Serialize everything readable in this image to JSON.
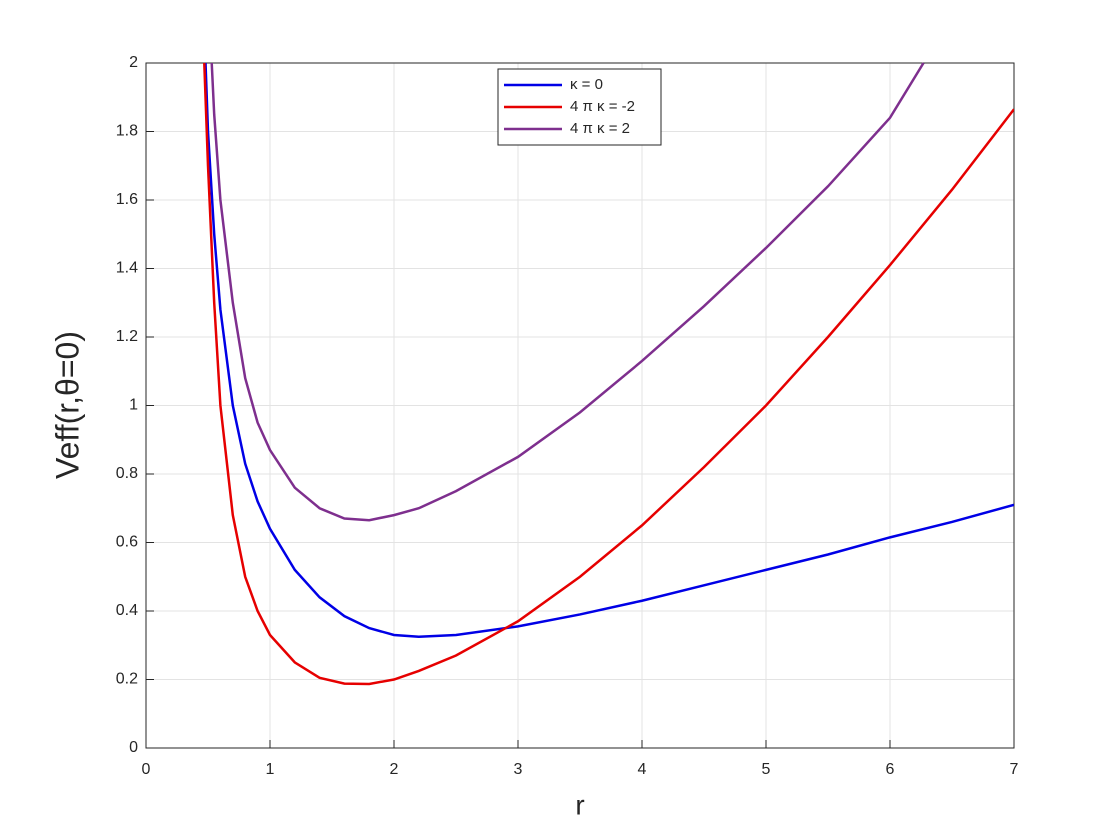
{
  "chart_data": {
    "type": "line",
    "x_label": "r",
    "y_label": "Veff(r,θ=0)",
    "xlim": [
      0,
      7
    ],
    "xticks": [
      0,
      1,
      2,
      3,
      4,
      5,
      6,
      7
    ],
    "ylim": [
      0,
      2
    ],
    "yticks": [
      0,
      0.2,
      0.4,
      0.6,
      0.8,
      1,
      1.2,
      1.4,
      1.6,
      1.8,
      2
    ],
    "grid": true,
    "legend": "top",
    "series": [
      {
        "name": "κ = 0",
        "color": "#0000e6",
        "x": [
          0.48,
          0.5,
          0.55,
          0.6,
          0.7,
          0.8,
          0.9,
          1.0,
          1.2,
          1.4,
          1.6,
          1.8,
          2.0,
          2.2,
          2.5,
          3,
          3.5,
          4,
          4.5,
          5,
          5.5,
          6,
          6.5,
          7
        ],
        "values": [
          2.0,
          1.8,
          1.5,
          1.28,
          1.0,
          0.83,
          0.72,
          0.64,
          0.52,
          0.44,
          0.385,
          0.35,
          0.33,
          0.325,
          0.33,
          0.355,
          0.39,
          0.43,
          0.475,
          0.52,
          0.565,
          0.615,
          0.66,
          0.71
        ]
      },
      {
        "name": "4 π κ = -2",
        "color": "#e60000",
        "x": [
          0.47,
          0.5,
          0.55,
          0.6,
          0.7,
          0.8,
          0.9,
          1.0,
          1.2,
          1.4,
          1.6,
          1.8,
          2.0,
          2.2,
          2.5,
          3,
          3.5,
          4,
          4.5,
          5,
          5.5,
          6,
          6.5,
          7
        ],
        "values": [
          2.0,
          1.7,
          1.3,
          1.0,
          0.68,
          0.5,
          0.4,
          0.33,
          0.25,
          0.205,
          0.188,
          0.187,
          0.2,
          0.225,
          0.27,
          0.37,
          0.5,
          0.65,
          0.82,
          1.0,
          1.2,
          1.41,
          1.63,
          1.865
        ]
      },
      {
        "name": "4 π κ = 2",
        "color": "#7e2f8e",
        "x": [
          0.53,
          0.55,
          0.6,
          0.7,
          0.8,
          0.9,
          1.0,
          1.2,
          1.4,
          1.6,
          1.8,
          2.0,
          2.2,
          2.5,
          3,
          3.5,
          4,
          4.5,
          5,
          5.5,
          6,
          6.27
        ],
        "values": [
          2.0,
          1.85,
          1.6,
          1.3,
          1.08,
          0.95,
          0.87,
          0.76,
          0.7,
          0.67,
          0.665,
          0.68,
          0.7,
          0.75,
          0.85,
          0.98,
          1.13,
          1.29,
          1.46,
          1.64,
          1.84,
          2.0
        ]
      }
    ]
  }
}
